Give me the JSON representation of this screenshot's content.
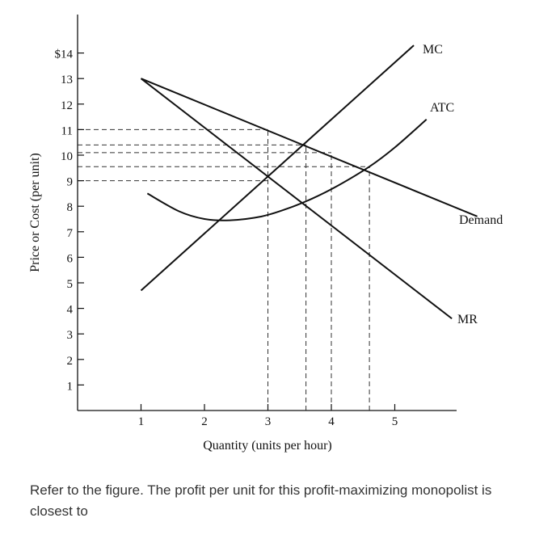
{
  "question": {
    "text": "Refer to the figure. The profit per unit for this profit-maximizing monopolist is closest to"
  },
  "chart_data": {
    "type": "line",
    "title": "",
    "xlabel": "Quantity (units per hour)",
    "ylabel": "Price or Cost (per unit)",
    "xlim": [
      0,
      6
    ],
    "ylim": [
      0,
      15
    ],
    "x_ticks": [
      {
        "value": 1,
        "label": "1"
      },
      {
        "value": 2,
        "label": "2"
      },
      {
        "value": 3,
        "label": "3"
      },
      {
        "value": 4,
        "label": "4"
      },
      {
        "value": 5,
        "label": "5"
      }
    ],
    "y_ticks": [
      {
        "value": 1,
        "label": "1"
      },
      {
        "value": 2,
        "label": "2"
      },
      {
        "value": 3,
        "label": "3"
      },
      {
        "value": 4,
        "label": "4"
      },
      {
        "value": 5,
        "label": "5"
      },
      {
        "value": 6,
        "label": "6"
      },
      {
        "value": 7,
        "label": "7"
      },
      {
        "value": 8,
        "label": "8"
      },
      {
        "value": 9,
        "label": "9"
      },
      {
        "value": 10,
        "label": "10"
      },
      {
        "value": 11,
        "label": "11"
      },
      {
        "value": 12,
        "label": "12"
      },
      {
        "value": 13,
        "label": "13"
      },
      {
        "value": 14,
        "label": "$14"
      }
    ],
    "series": [
      {
        "name": "MC",
        "color": "#111111",
        "x": [
          1.0,
          5.3
        ],
        "y": [
          4.7,
          14.3
        ]
      },
      {
        "name": "ATC",
        "color": "#111111",
        "x": [
          1.1,
          1.6,
          2.0,
          2.4,
          2.9,
          3.3,
          3.7,
          4.1,
          4.6,
          5.0,
          5.5
        ],
        "y": [
          8.5,
          7.8,
          7.5,
          7.45,
          7.6,
          7.9,
          8.3,
          8.8,
          9.55,
          10.3,
          11.4
        ]
      },
      {
        "name": "Demand",
        "color": "#111111",
        "x": [
          1.0,
          6.3
        ],
        "y": [
          13.0,
          7.6
        ]
      },
      {
        "name": "MR",
        "color": "#111111",
        "x": [
          1.0,
          5.9
        ],
        "y": [
          13.0,
          3.6
        ]
      }
    ],
    "reference_lines": [
      {
        "orient": "h",
        "y": 11.0,
        "from_x": 0,
        "to_x": 3.0
      },
      {
        "orient": "h",
        "y": 10.4,
        "from_x": 0,
        "to_x": 3.6
      },
      {
        "orient": "h",
        "y": 10.1,
        "from_x": 0,
        "to_x": 4.0
      },
      {
        "orient": "h",
        "y": 9.55,
        "from_x": 0,
        "to_x": 4.6
      },
      {
        "orient": "h",
        "y": 9.0,
        "from_x": 0,
        "to_x": 3.0
      },
      {
        "orient": "v",
        "x": 3.0,
        "from_y": 0,
        "to_y": 11.0
      },
      {
        "orient": "v",
        "x": 3.6,
        "from_y": 0,
        "to_y": 10.4
      },
      {
        "orient": "v",
        "x": 4.0,
        "from_y": 0,
        "to_y": 10.1
      },
      {
        "orient": "v",
        "x": 4.6,
        "from_y": 0,
        "to_y": 9.55
      }
    ],
    "grid": false,
    "legend": "curve labels placed at curve ends"
  }
}
